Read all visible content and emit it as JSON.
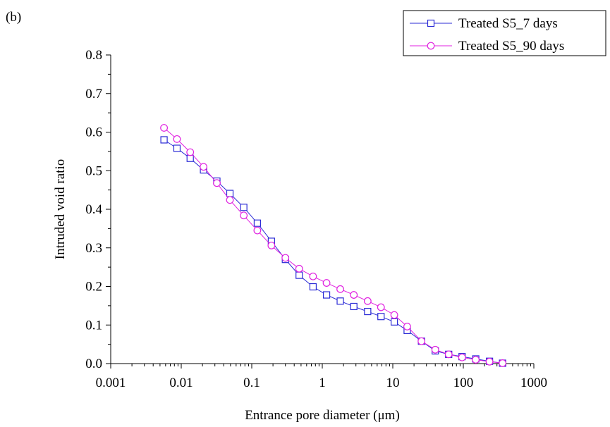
{
  "panel_label": "(b)",
  "chart_data": {
    "type": "line",
    "xlabel": "Entrance pore diameter (μm)",
    "ylabel": "Intruded void ratio",
    "xscale": "log",
    "xlim": [
      0.001,
      1000
    ],
    "ylim": [
      0.0,
      0.8
    ],
    "x_ticks": [
      0.001,
      0.01,
      0.1,
      1,
      10,
      100,
      1000
    ],
    "x_tick_labels": [
      "0.001",
      "0.01",
      "0.1",
      "1",
      "10",
      "100",
      "1000"
    ],
    "y_ticks": [
      0.0,
      0.1,
      0.2,
      0.3,
      0.4,
      0.5,
      0.6,
      0.7,
      0.8
    ],
    "y_tick_labels": [
      "0.0",
      "0.1",
      "0.2",
      "0.3",
      "0.4",
      "0.5",
      "0.6",
      "0.7",
      "0.8"
    ],
    "grid": false,
    "legend_position": "top-right",
    "series": [
      {
        "name": "Treated S5_7 days",
        "color": "#2b2bd6",
        "marker": "square",
        "x": [
          0.0057,
          0.0087,
          0.0134,
          0.0207,
          0.032,
          0.049,
          0.077,
          0.12,
          0.19,
          0.3,
          0.47,
          0.74,
          1.15,
          1.8,
          2.8,
          4.4,
          6.8,
          10.5,
          16,
          25.5,
          40,
          62,
          96,
          150,
          235,
          360
        ],
        "values": [
          0.58,
          0.558,
          0.532,
          0.502,
          0.473,
          0.441,
          0.405,
          0.364,
          0.317,
          0.27,
          0.229,
          0.199,
          0.178,
          0.162,
          0.148,
          0.135,
          0.122,
          0.108,
          0.086,
          0.058,
          0.033,
          0.024,
          0.018,
          0.012,
          0.006,
          0.001
        ]
      },
      {
        "name": "Treated S5_90 days",
        "color": "#e020e0",
        "marker": "circle",
        "x": [
          0.0057,
          0.0087,
          0.0134,
          0.0207,
          0.032,
          0.049,
          0.077,
          0.12,
          0.19,
          0.3,
          0.47,
          0.74,
          1.15,
          1.8,
          2.8,
          4.4,
          6.8,
          10.5,
          16,
          25.5,
          40,
          62,
          96,
          150,
          235,
          360
        ],
        "values": [
          0.611,
          0.582,
          0.548,
          0.51,
          0.468,
          0.424,
          0.384,
          0.345,
          0.306,
          0.274,
          0.246,
          0.226,
          0.209,
          0.193,
          0.178,
          0.162,
          0.146,
          0.126,
          0.096,
          0.058,
          0.036,
          0.024,
          0.016,
          0.01,
          0.005,
          0.001
        ]
      }
    ]
  }
}
